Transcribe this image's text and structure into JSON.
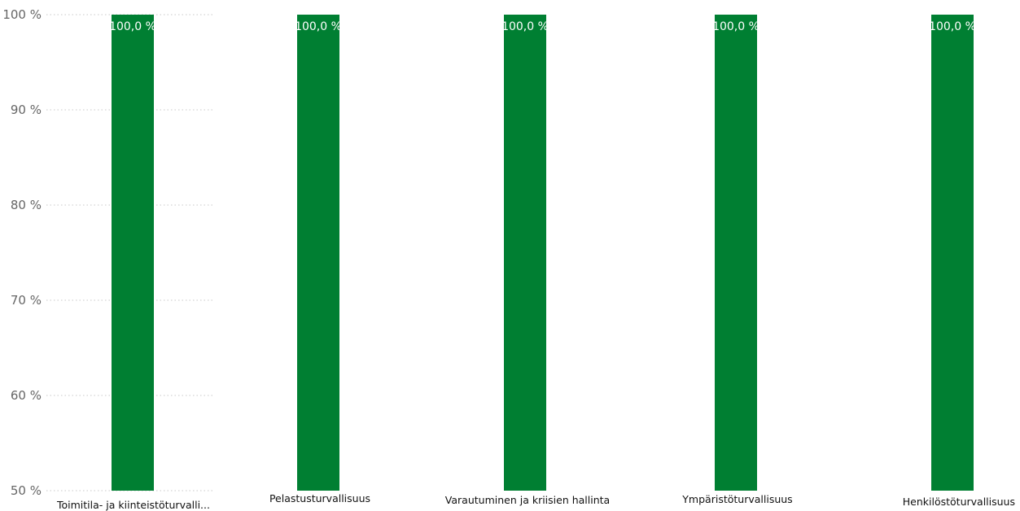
{
  "chart_data": {
    "type": "bar",
    "title": "",
    "xlabel": "",
    "ylabel": "",
    "categories": [
      "Toimitila- ja kiinteistöturvalli...",
      "Pelastusturvallisuus",
      "Varautuminen ja kriisien hallinta",
      "Ympäristöturvallisuus",
      "Henkilöstöturvallisuus"
    ],
    "values": [
      100.0,
      100.0,
      100.0,
      100.0,
      100.0
    ],
    "data_labels": [
      "100,0 %",
      "100,0 %",
      "100,0 %",
      "100,0 %",
      "100,0 %"
    ],
    "ylim": [
      50,
      100
    ],
    "yticks": [
      50,
      60,
      70,
      80,
      90,
      100
    ],
    "ytick_labels": [
      "50 %",
      "60 %",
      "70 %",
      "80 %",
      "90 %",
      "100 %"
    ],
    "grid": true,
    "legend": "none",
    "bar_color": "#007f32"
  }
}
